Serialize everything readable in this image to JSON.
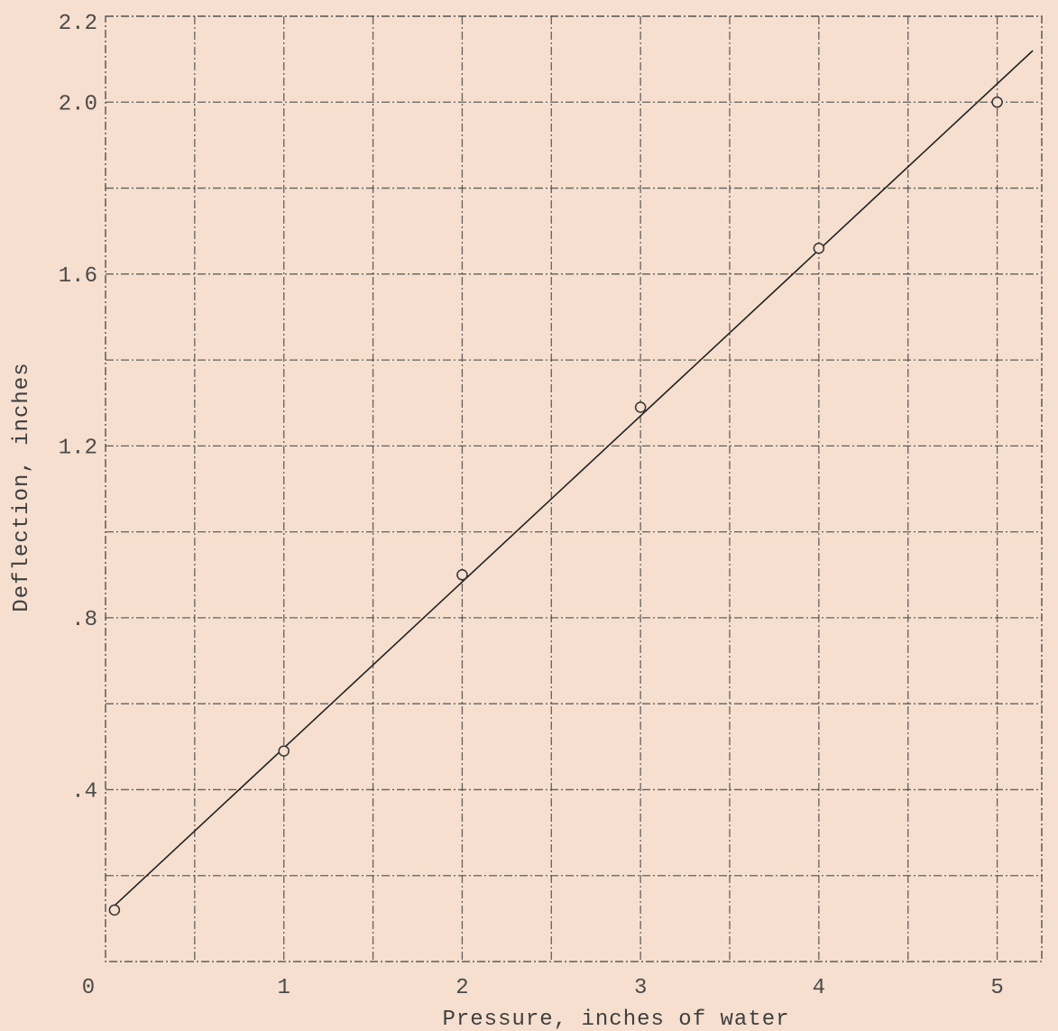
{
  "chart_data": {
    "type": "scatter",
    "title": "",
    "xlabel": "Pressure, inches of water",
    "ylabel": "Deflection, inches",
    "xlim": [
      0,
      5.25
    ],
    "ylim": [
      0,
      2.2
    ],
    "x_ticks": [
      0,
      1,
      2,
      3,
      4,
      5
    ],
    "x_tick_labels": [
      "0",
      "1",
      "2",
      "3",
      "4",
      "5"
    ],
    "y_ticks": [
      0.4,
      0.8,
      1.2,
      1.6,
      2.0,
      2.2
    ],
    "y_tick_labels": [
      ".4",
      ".8",
      "1.2",
      "1.6",
      "2.0",
      "2.2"
    ],
    "x_gridlines": [
      0.5,
      1,
      1.5,
      2,
      2.5,
      3,
      3.5,
      4,
      4.5,
      5
    ],
    "y_gridlines": [
      0.2,
      0.4,
      0.6,
      0.8,
      1.0,
      1.2,
      1.4,
      1.6,
      1.8,
      2.0,
      2.2
    ],
    "grid": true,
    "series": [
      {
        "marker": "open-circle",
        "points": [
          {
            "x": 0.05,
            "y": 0.12
          },
          {
            "x": 1.0,
            "y": 0.49
          },
          {
            "x": 2.0,
            "y": 0.9
          },
          {
            "x": 3.0,
            "y": 1.29
          },
          {
            "x": 4.0,
            "y": 1.66
          },
          {
            "x": 5.0,
            "y": 2.0
          }
        ]
      }
    ],
    "fit_line": {
      "x": [
        0.05,
        5.2
      ],
      "y": [
        0.13,
        2.12
      ]
    }
  }
}
